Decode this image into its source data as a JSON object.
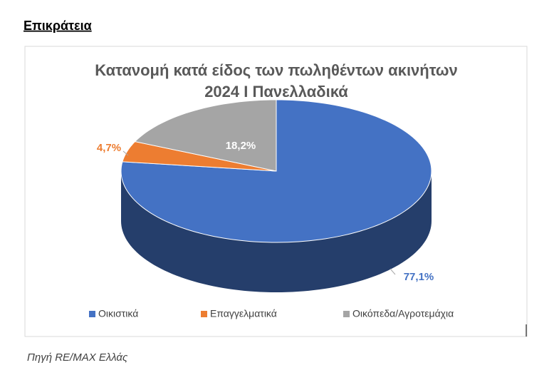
{
  "header": {
    "title": "Επικράτεια"
  },
  "chart_data": {
    "type": "pie",
    "title": [
      "Κατανομή κατά είδος των πωληθέντων ακινήτων",
      "2024 Ι Πανελλαδικά"
    ],
    "categories": [
      "Οικιστικά",
      "Επαγγελματικά",
      "Οικόπεδα/Αγροτεμάχια"
    ],
    "values": [
      77.1,
      4.7,
      18.2
    ],
    "value_labels": [
      "77,1%",
      "4,7%",
      "18,2%"
    ],
    "colors": [
      "#4472c4",
      "#ed7d31",
      "#a5a5a5"
    ],
    "legend": "bottom"
  },
  "footer": {
    "source": "Πηγή RE/MAX Ελλάς"
  }
}
